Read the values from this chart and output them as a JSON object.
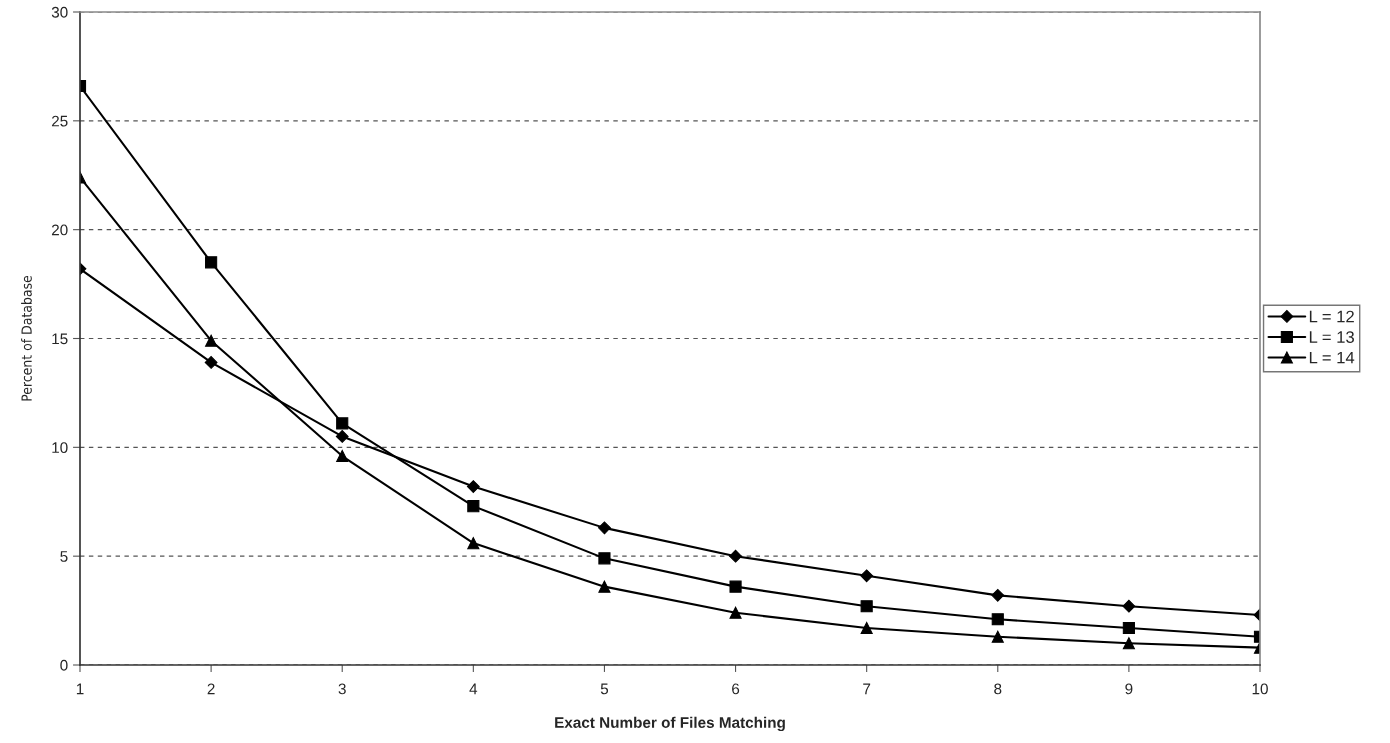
{
  "chart_data": {
    "type": "line",
    "xlabel": "Exact Number of Files Matching",
    "ylabel": "Percent of Database",
    "x": [
      1,
      2,
      3,
      4,
      5,
      6,
      7,
      8,
      9,
      10
    ],
    "series": [
      {
        "name": "L = 12",
        "color": "#000000",
        "marker": "diamond",
        "values": [
          18.2,
          13.9,
          10.5,
          8.2,
          6.3,
          5.0,
          4.1,
          3.2,
          2.7,
          2.3
        ]
      },
      {
        "name": "L = 13",
        "color": "#000000",
        "marker": "square",
        "values": [
          26.6,
          18.5,
          11.1,
          7.3,
          4.9,
          3.6,
          2.7,
          2.1,
          1.7,
          1.3
        ]
      },
      {
        "name": "L = 14",
        "color": "#000000",
        "marker": "triangle",
        "values": [
          22.4,
          14.9,
          9.6,
          5.6,
          3.6,
          2.4,
          1.7,
          1.3,
          1.0,
          0.8
        ]
      }
    ],
    "xlim": [
      1,
      10
    ],
    "xticks": [
      1,
      2,
      3,
      4,
      5,
      6,
      7,
      8,
      9,
      10
    ],
    "ylim": [
      0,
      30
    ],
    "yticks": [
      0,
      5,
      10,
      15,
      20,
      25,
      30
    ],
    "grid": "y",
    "legend": "right",
    "line_style": "solid"
  }
}
